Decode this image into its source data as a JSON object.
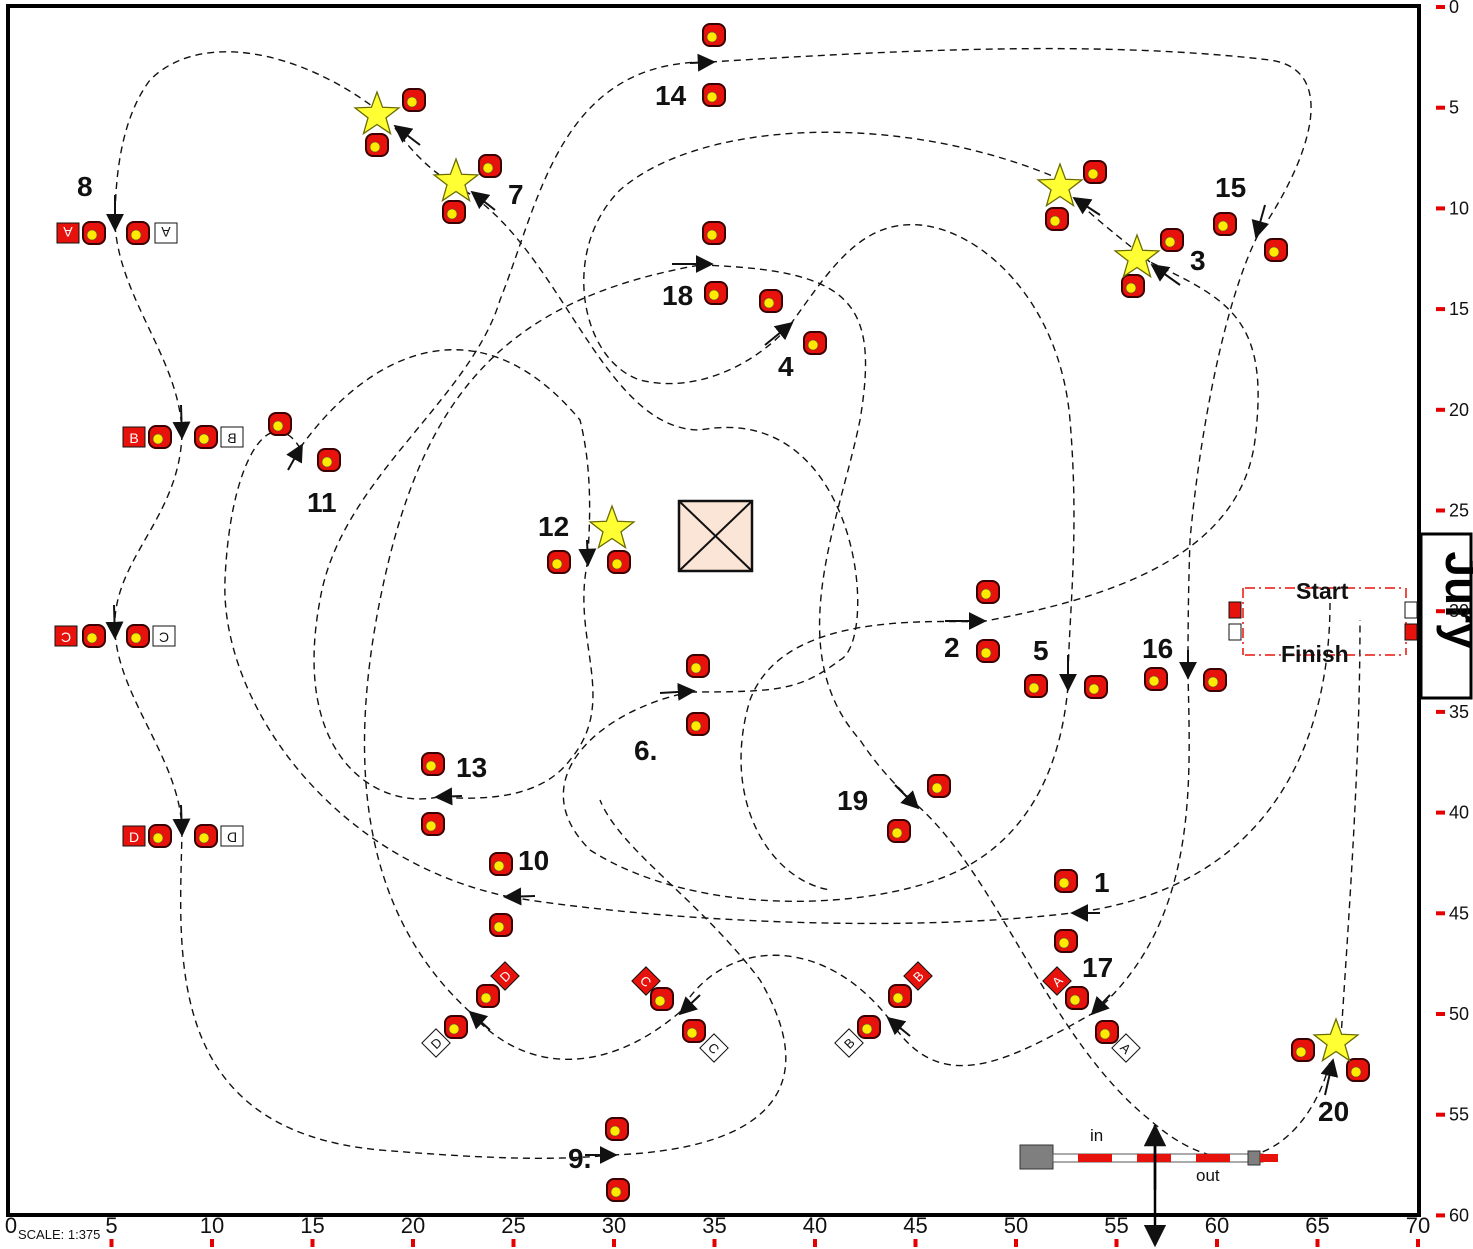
{
  "scale_label": "SCALE:  1:375",
  "jury_label": "Jury",
  "start_label": "Start",
  "finish_label": "Finish",
  "in_label": "in",
  "out_label": "out",
  "x_axis_ticks": [
    "0",
    "5",
    "10",
    "15",
    "20",
    "25",
    "30",
    "35",
    "40",
    "45",
    "50",
    "55",
    "60",
    "65",
    "70"
  ],
  "y_axis_ticks": [
    "0",
    "5",
    "10",
    "15",
    "20",
    "25",
    "30",
    "35",
    "40",
    "45",
    "50",
    "55",
    "60"
  ],
  "obstacle_numbers": [
    "1",
    "2",
    "3",
    "4",
    "5",
    "6.",
    "7",
    "8",
    "9.",
    "10",
    "11",
    "12",
    "13",
    "14",
    "15",
    "16",
    "17",
    "18",
    "19",
    "20"
  ],
  "element_letters": [
    "A",
    "B",
    "C",
    "D"
  ],
  "colors": {
    "pole_red": "#e8120c",
    "pole_yellow": "#ffea00",
    "star": "#ffff33",
    "tick_red": "#e50000",
    "box_fill": "#fbe5d6",
    "entrance_grey": "#7f7f7f"
  }
}
